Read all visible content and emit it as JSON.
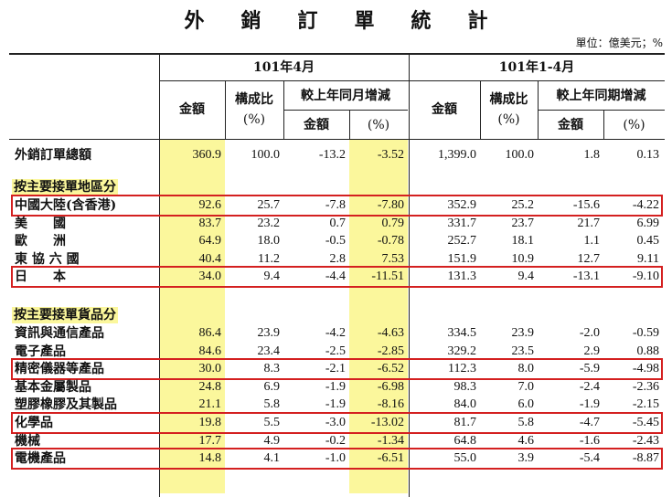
{
  "title": "外銷訂單統計",
  "unit_note": "單位：億美元；%",
  "headers": {
    "period1": "101年4月",
    "period2": "101年1-4月",
    "amount": "金額",
    "share_line1": "構成比",
    "share_line2": "(%)",
    "yoy_month": "較上年同月增減",
    "yoy_period": "較上年同期增減",
    "sub_amount": "金額",
    "sub_pct": "(%)"
  },
  "total": {
    "label": "外銷訂單總額",
    "values": [
      "360.9",
      "100.0",
      "-13.2",
      "-3.52",
      "1,399.0",
      "100.0",
      "1.8",
      "0.13"
    ]
  },
  "sections": [
    {
      "title": "按主要接單地區分",
      "rows": [
        {
          "label": "中國大陸(含香港)",
          "values": [
            "92.6",
            "25.7",
            "-7.8",
            "-7.80",
            "352.9",
            "25.2",
            "-15.6",
            "-4.22"
          ],
          "highlight": true
        },
        {
          "label": "美　　國",
          "values": [
            "83.7",
            "23.2",
            "0.7",
            "0.79",
            "331.7",
            "23.7",
            "21.7",
            "6.99"
          ],
          "highlight": false
        },
        {
          "label": "歐　　洲",
          "values": [
            "64.9",
            "18.0",
            "-0.5",
            "-0.78",
            "252.7",
            "18.1",
            "1.1",
            "0.45"
          ],
          "highlight": false
        },
        {
          "label": "東 協 六 國",
          "values": [
            "40.4",
            "11.2",
            "2.8",
            "7.53",
            "151.9",
            "10.9",
            "12.7",
            "9.11"
          ],
          "highlight": false
        },
        {
          "label": "日　　本",
          "values": [
            "34.0",
            "9.4",
            "-4.4",
            "-11.51",
            "131.3",
            "9.4",
            "-13.1",
            "-9.10"
          ],
          "highlight": true
        }
      ]
    },
    {
      "title": "按主要接單貨品分",
      "rows": [
        {
          "label": "資訊與通信產品",
          "values": [
            "86.4",
            "23.9",
            "-4.2",
            "-4.63",
            "334.5",
            "23.9",
            "-2.0",
            "-0.59"
          ],
          "highlight": false
        },
        {
          "label": "電子產品",
          "values": [
            "84.6",
            "23.4",
            "-2.5",
            "-2.85",
            "329.2",
            "23.5",
            "2.9",
            "0.88"
          ],
          "highlight": false
        },
        {
          "label": "精密儀器等產品",
          "values": [
            "30.0",
            "8.3",
            "-2.1",
            "-6.52",
            "112.3",
            "8.0",
            "-5.9",
            "-4.98"
          ],
          "highlight": true
        },
        {
          "label": "基本金屬製品",
          "values": [
            "24.8",
            "6.9",
            "-1.9",
            "-6.98",
            "98.3",
            "7.0",
            "-2.4",
            "-2.36"
          ],
          "highlight": false
        },
        {
          "label": "塑膠橡膠及其製品",
          "values": [
            "21.1",
            "5.8",
            "-1.9",
            "-8.16",
            "84.0",
            "6.0",
            "-1.9",
            "-2.15"
          ],
          "highlight": false
        },
        {
          "label": "化學品",
          "values": [
            "19.8",
            "5.5",
            "-3.0",
            "-13.02",
            "81.7",
            "5.8",
            "-4.7",
            "-5.45"
          ],
          "highlight": true
        },
        {
          "label": "機械",
          "values": [
            "17.7",
            "4.9",
            "-0.2",
            "-1.34",
            "64.8",
            "4.6",
            "-1.6",
            "-2.43"
          ],
          "highlight": false
        },
        {
          "label": "電機產品",
          "values": [
            "14.8",
            "4.1",
            "-1.0",
            "-6.51",
            "55.0",
            "3.9",
            "-5.4",
            "-8.87"
          ],
          "highlight": true
        }
      ]
    }
  ]
}
